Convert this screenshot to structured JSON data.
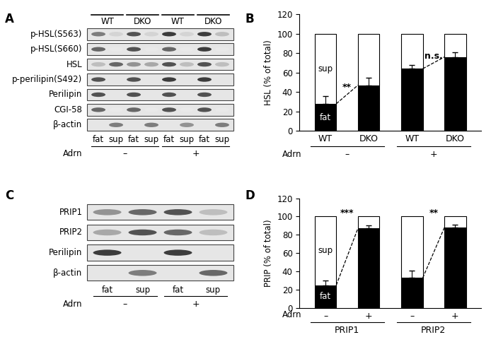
{
  "blots": [
    {
      "panel": "A",
      "headers": [
        {
          "label": "WT",
          "lanes": [
            0,
            1
          ]
        },
        {
          "label": "DKO",
          "lanes": [
            2,
            3
          ]
        },
        {
          "label": "WT",
          "lanes": [
            4,
            5
          ]
        },
        {
          "label": "DKO",
          "lanes": [
            6,
            7
          ]
        }
      ],
      "lanes": [
        "fat",
        "sup",
        "fat",
        "sup",
        "fat",
        "sup",
        "fat",
        "sup"
      ],
      "treatment_label": "Adrn",
      "treatments": [
        {
          "label": "–",
          "lanes": [
            0,
            3
          ]
        },
        {
          "label": "+",
          "lanes": [
            4,
            7
          ]
        }
      ],
      "rows": [
        {
          "label": "p-HSL(S563)",
          "bands": [
            0.6,
            0.2,
            0.8,
            0.2,
            0.9,
            0.2,
            0.9,
            0.3
          ]
        },
        {
          "label": "p-HSL(S660)",
          "bands": [
            0.7,
            0.1,
            0.8,
            0.1,
            0.7,
            0.1,
            0.9,
            0.1
          ]
        },
        {
          "label": "HSL",
          "bands": [
            0.3,
            0.7,
            0.5,
            0.4,
            0.8,
            0.3,
            0.8,
            0.3
          ]
        },
        {
          "label": "p-perilipin(S492)",
          "bands": [
            0.8,
            0.0,
            0.8,
            0.0,
            0.9,
            0.0,
            0.9,
            0.0
          ]
        },
        {
          "label": "Perilipin",
          "bands": [
            0.8,
            0.0,
            0.8,
            0.0,
            0.8,
            0.0,
            0.8,
            0.0
          ]
        },
        {
          "label": "CGI-58",
          "bands": [
            0.7,
            0.1,
            0.7,
            0.1,
            0.8,
            0.1,
            0.8,
            0.1
          ]
        },
        {
          "label": "β-actin",
          "bands": [
            0.0,
            0.6,
            0.0,
            0.6,
            0.0,
            0.5,
            0.0,
            0.6
          ]
        }
      ]
    },
    {
      "panel": "C",
      "headers": [],
      "lanes": [
        "fat",
        "sup",
        "fat",
        "sup"
      ],
      "treatment_label": "Adrn",
      "treatments": [
        {
          "label": "–",
          "lanes": [
            0,
            1
          ]
        },
        {
          "label": "+",
          "lanes": [
            2,
            3
          ]
        }
      ],
      "rows": [
        {
          "label": "PRIP1",
          "bands": [
            0.5,
            0.7,
            0.8,
            0.3
          ]
        },
        {
          "label": "PRIP2",
          "bands": [
            0.4,
            0.8,
            0.7,
            0.3
          ]
        },
        {
          "label": "Perilipin",
          "bands": [
            0.9,
            0.0,
            0.9,
            0.0
          ]
        },
        {
          "label": "β-actin",
          "bands": [
            0.0,
            0.6,
            0.0,
            0.7
          ]
        }
      ]
    }
  ],
  "chart_data": [
    {
      "panel": "B",
      "type": "bar",
      "stacked": true,
      "ylabel": "HSL (% of total)",
      "categories": [
        "WT",
        "DKO",
        "WT",
        "DKO"
      ],
      "groups": [
        {
          "label": "–",
          "categories": [
            0,
            1
          ]
        },
        {
          "label": "+",
          "categories": [
            2,
            3
          ]
        }
      ],
      "group_axis_label": "Adrn",
      "ylim": [
        0,
        120
      ],
      "yticks": [
        0,
        20,
        40,
        60,
        80,
        100,
        120
      ],
      "series": [
        {
          "name": "fat",
          "color": "#000000",
          "values": [
            28,
            47,
            64,
            76
          ],
          "errors": [
            8,
            8,
            4,
            5
          ]
        },
        {
          "name": "sup",
          "color": "#ffffff",
          "values": [
            72,
            53,
            36,
            24
          ]
        }
      ],
      "annotations": [
        {
          "text": "**",
          "categories": [
            0,
            1
          ],
          "y": 40
        },
        {
          "text": "n.s.",
          "categories": [
            2,
            3
          ],
          "y": 72
        }
      ]
    },
    {
      "panel": "D",
      "type": "bar",
      "stacked": true,
      "ylabel": "PRIP (% of total)",
      "categories": [
        "–",
        "+",
        "–",
        "+"
      ],
      "groups": [
        {
          "label": "PRIP1",
          "categories": [
            0,
            1
          ]
        },
        {
          "label": "PRIP2",
          "categories": [
            2,
            3
          ]
        }
      ],
      "tick_axis_label": "Adrn",
      "ylim": [
        0,
        120
      ],
      "yticks": [
        0,
        20,
        40,
        60,
        80,
        100,
        120
      ],
      "series": [
        {
          "name": "fat",
          "color": "#000000",
          "values": [
            25,
            87,
            33,
            88
          ],
          "errors": [
            5,
            3,
            8,
            3
          ]
        },
        {
          "name": "sup",
          "color": "#ffffff",
          "values": [
            75,
            13,
            67,
            12
          ]
        }
      ],
      "annotations": [
        {
          "text": "***",
          "categories": [
            0,
            1
          ],
          "y": 99
        },
        {
          "text": "**",
          "categories": [
            2,
            3
          ],
          "y": 99
        }
      ]
    }
  ]
}
